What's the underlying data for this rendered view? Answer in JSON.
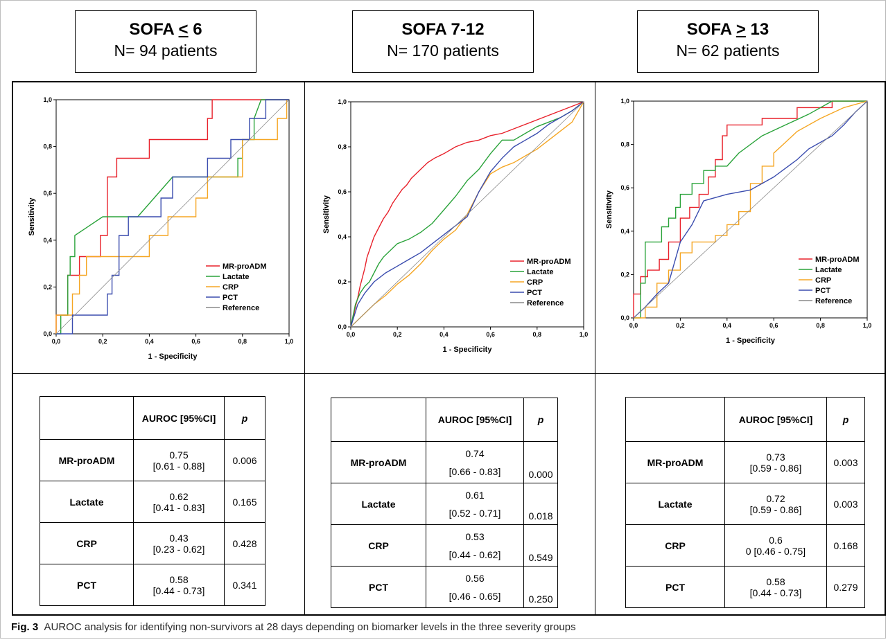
{
  "headers": [
    {
      "title_pre": "SOFA ",
      "title_sym": "<",
      "title_post": " 6",
      "subtitle": "N= 94 patients"
    },
    {
      "title_pre": "SOFA 7-12",
      "title_sym": "",
      "title_post": "",
      "subtitle": "N= 170 patients"
    },
    {
      "title_pre": "SOFA ",
      "title_sym": ">",
      "title_post": " 13",
      "subtitle": "N= 62 patients"
    }
  ],
  "colors": {
    "MR-proADM": "#e8202a",
    "Lactate": "#2aa33a",
    "CRP": "#f5a623",
    "PCT": "#3a4cae",
    "Reference": "#8a8a8a"
  },
  "chart_data": [
    {
      "type": "line",
      "xlabel": "1 - Specificity",
      "ylabel": "Sensitivity",
      "xlim": [
        0,
        1
      ],
      "ylim": [
        0,
        1
      ],
      "ticks": [
        "0,0",
        "0,2",
        "0,4",
        "0,6",
        "0,8",
        "1,0"
      ],
      "legend": [
        "MR-proADM",
        "Lactate",
        "CRP",
        "PCT",
        "Reference"
      ],
      "series": [
        {
          "name": "MR-proADM",
          "x": [
            0,
            0,
            0.05,
            0.05,
            0.1,
            0.1,
            0.19,
            0.19,
            0.22,
            0.22,
            0.26,
            0.26,
            0.3,
            0.3,
            0.4,
            0.4,
            0.65,
            0.65,
            0.67,
            0.67,
            1
          ],
          "y": [
            0,
            0.08,
            0.08,
            0.25,
            0.25,
            0.33,
            0.33,
            0.42,
            0.42,
            0.67,
            0.67,
            0.75,
            0.75,
            0.75,
            0.75,
            0.83,
            0.83,
            0.92,
            0.92,
            1,
            1
          ]
        },
        {
          "name": "Lactate",
          "x": [
            0,
            0.02,
            0.02,
            0.05,
            0.05,
            0.06,
            0.06,
            0.08,
            0.08,
            0.2,
            0.2,
            0.35,
            0.5,
            0.78,
            0.78,
            0.8,
            0.8,
            0.85,
            0.85,
            0.88,
            0.9,
            1
          ],
          "y": [
            0,
            0,
            0.08,
            0.08,
            0.25,
            0.25,
            0.33,
            0.33,
            0.42,
            0.5,
            0.5,
            0.5,
            0.67,
            0.67,
            0.75,
            0.75,
            0.83,
            0.83,
            0.92,
            1,
            1,
            1
          ]
        },
        {
          "name": "CRP",
          "x": [
            0,
            0,
            0.07,
            0.07,
            0.1,
            0.1,
            0.13,
            0.13,
            0.27,
            0.27,
            0.4,
            0.4,
            0.48,
            0.48,
            0.6,
            0.6,
            0.65,
            0.65,
            0.8,
            0.8,
            0.88,
            0.88,
            0.95,
            0.95,
            0.99,
            0.99
          ],
          "y": [
            0,
            0.08,
            0.08,
            0.17,
            0.17,
            0.25,
            0.25,
            0.33,
            0.33,
            0.33,
            0.33,
            0.42,
            0.42,
            0.5,
            0.5,
            0.58,
            0.58,
            0.67,
            0.67,
            0.83,
            0.83,
            0.83,
            0.83,
            0.92,
            0.92,
            1
          ]
        },
        {
          "name": "PCT",
          "x": [
            0,
            0.07,
            0.07,
            0.15,
            0.15,
            0.22,
            0.22,
            0.24,
            0.24,
            0.27,
            0.27,
            0.31,
            0.31,
            0.45,
            0.45,
            0.5,
            0.5,
            0.65,
            0.65,
            0.75,
            0.75,
            0.8,
            0.8,
            0.83,
            0.83,
            0.9,
            0.9,
            0.95,
            0.95,
            1
          ],
          "y": [
            0,
            0,
            0.08,
            0.08,
            0.08,
            0.08,
            0.17,
            0.17,
            0.25,
            0.25,
            0.42,
            0.42,
            0.5,
            0.5,
            0.58,
            0.58,
            0.67,
            0.67,
            0.75,
            0.75,
            0.83,
            0.83,
            0.83,
            0.83,
            0.92,
            0.92,
            1,
            1,
            1,
            1
          ]
        },
        {
          "name": "Reference",
          "x": [
            0,
            1
          ],
          "y": [
            0,
            1
          ]
        }
      ]
    },
    {
      "type": "line",
      "xlabel": "1 - Specificity",
      "ylabel": "Sensitivity",
      "xlim": [
        0,
        1
      ],
      "ylim": [
        0,
        1
      ],
      "ticks": [
        "0,0",
        "0,2",
        "0,4",
        "0,6",
        "0,8",
        "1,0"
      ],
      "legend": [
        "MR-proADM",
        "Lactate",
        "CRP",
        "PCT",
        "Reference"
      ],
      "series": [
        {
          "name": "MR-proADM",
          "x": [
            0,
            0.01,
            0.02,
            0.03,
            0.04,
            0.05,
            0.06,
            0.07,
            0.08,
            0.09,
            0.1,
            0.12,
            0.14,
            0.16,
            0.18,
            0.2,
            0.22,
            0.24,
            0.26,
            0.28,
            0.3,
            0.33,
            0.36,
            0.4,
            0.45,
            0.5,
            0.55,
            0.6,
            0.65,
            0.7,
            0.75,
            0.8,
            0.85,
            0.9,
            0.95,
            1
          ],
          "y": [
            0,
            0.04,
            0.09,
            0.13,
            0.18,
            0.22,
            0.26,
            0.31,
            0.34,
            0.37,
            0.4,
            0.44,
            0.48,
            0.51,
            0.55,
            0.58,
            0.61,
            0.63,
            0.66,
            0.68,
            0.7,
            0.73,
            0.75,
            0.77,
            0.8,
            0.82,
            0.83,
            0.85,
            0.86,
            0.88,
            0.9,
            0.92,
            0.94,
            0.96,
            0.98,
            1
          ]
        },
        {
          "name": "Lactate",
          "x": [
            0,
            0.02,
            0.04,
            0.06,
            0.08,
            0.1,
            0.12,
            0.14,
            0.16,
            0.2,
            0.25,
            0.3,
            0.35,
            0.4,
            0.45,
            0.5,
            0.55,
            0.6,
            0.65,
            0.7,
            0.75,
            0.8,
            0.85,
            0.9,
            0.95,
            1
          ],
          "y": [
            0,
            0.1,
            0.15,
            0.18,
            0.2,
            0.24,
            0.28,
            0.31,
            0.33,
            0.37,
            0.39,
            0.42,
            0.46,
            0.52,
            0.58,
            0.65,
            0.7,
            0.77,
            0.83,
            0.83,
            0.86,
            0.89,
            0.91,
            0.93,
            0.96,
            1
          ]
        },
        {
          "name": "CRP",
          "x": [
            0,
            0.05,
            0.1,
            0.15,
            0.2,
            0.25,
            0.3,
            0.35,
            0.4,
            0.45,
            0.5,
            0.55,
            0.6,
            0.65,
            0.7,
            0.75,
            0.8,
            0.85,
            0.9,
            0.95,
            1
          ],
          "y": [
            0,
            0.05,
            0.1,
            0.14,
            0.19,
            0.23,
            0.28,
            0.34,
            0.39,
            0.43,
            0.5,
            0.6,
            0.68,
            0.71,
            0.73,
            0.76,
            0.79,
            0.83,
            0.87,
            0.91,
            1
          ]
        },
        {
          "name": "PCT",
          "x": [
            0,
            0.03,
            0.06,
            0.1,
            0.15,
            0.2,
            0.25,
            0.3,
            0.35,
            0.4,
            0.45,
            0.5,
            0.55,
            0.6,
            0.65,
            0.7,
            0.75,
            0.8,
            0.85,
            0.9,
            0.95,
            1
          ],
          "y": [
            0,
            0.1,
            0.15,
            0.2,
            0.24,
            0.27,
            0.3,
            0.33,
            0.37,
            0.41,
            0.45,
            0.49,
            0.6,
            0.69,
            0.75,
            0.8,
            0.83,
            0.86,
            0.9,
            0.93,
            0.96,
            1
          ]
        },
        {
          "name": "Reference",
          "x": [
            0,
            1
          ],
          "y": [
            0,
            1
          ]
        }
      ]
    },
    {
      "type": "line",
      "xlabel": "1 - Specificity",
      "ylabel": "Sensitivity",
      "xlim": [
        0,
        1
      ],
      "ylim": [
        0,
        1
      ],
      "ticks": [
        "0,0",
        "0,2",
        "0,4",
        "0,6",
        "0,8",
        "1,0"
      ],
      "legend": [
        "MR-proADM",
        "Lactate",
        "CRP",
        "PCT",
        "Reference"
      ],
      "series": [
        {
          "name": "MR-proADM",
          "x": [
            0,
            0,
            0.03,
            0.03,
            0.06,
            0.06,
            0.11,
            0.11,
            0.15,
            0.15,
            0.2,
            0.2,
            0.24,
            0.24,
            0.28,
            0.28,
            0.32,
            0.32,
            0.35,
            0.35,
            0.38,
            0.38,
            0.4,
            0.4,
            0.47,
            0.47,
            0.55,
            0.55,
            0.7,
            0.7,
            0.85,
            0.85,
            1
          ],
          "y": [
            0,
            0.11,
            0.11,
            0.19,
            0.19,
            0.22,
            0.22,
            0.27,
            0.27,
            0.35,
            0.35,
            0.46,
            0.46,
            0.51,
            0.51,
            0.57,
            0.57,
            0.65,
            0.65,
            0.73,
            0.73,
            0.84,
            0.84,
            0.89,
            0.89,
            0.89,
            0.89,
            0.92,
            0.92,
            0.97,
            0.97,
            1,
            1
          ]
        },
        {
          "name": "Lactate",
          "x": [
            0,
            0.03,
            0.03,
            0.05,
            0.05,
            0.12,
            0.12,
            0.15,
            0.15,
            0.18,
            0.18,
            0.2,
            0.2,
            0.25,
            0.25,
            0.3,
            0.3,
            0.35,
            0.35,
            0.4,
            0.4,
            0.45,
            0.55,
            0.65,
            0.75,
            0.85,
            1
          ],
          "y": [
            0,
            0,
            0.16,
            0.16,
            0.35,
            0.35,
            0.42,
            0.42,
            0.46,
            0.46,
            0.51,
            0.51,
            0.57,
            0.57,
            0.62,
            0.62,
            0.68,
            0.68,
            0.7,
            0.7,
            0.7,
            0.76,
            0.84,
            0.89,
            0.94,
            1,
            1
          ]
        },
        {
          "name": "CRP",
          "x": [
            0,
            0.05,
            0.05,
            0.1,
            0.1,
            0.15,
            0.15,
            0.2,
            0.2,
            0.25,
            0.25,
            0.3,
            0.3,
            0.35,
            0.35,
            0.4,
            0.4,
            0.45,
            0.45,
            0.5,
            0.5,
            0.55,
            0.55,
            0.6,
            0.6,
            0.65,
            0.7,
            0.8,
            0.9,
            1
          ],
          "y": [
            0,
            0,
            0.05,
            0.05,
            0.16,
            0.16,
            0.22,
            0.22,
            0.3,
            0.3,
            0.35,
            0.35,
            0.35,
            0.35,
            0.38,
            0.38,
            0.43,
            0.43,
            0.49,
            0.49,
            0.62,
            0.62,
            0.7,
            0.7,
            0.76,
            0.81,
            0.86,
            0.92,
            0.97,
            1
          ]
        },
        {
          "name": "PCT",
          "x": [
            0,
            0.05,
            0.05,
            0.1,
            0.1,
            0.15,
            0.15,
            0.2,
            0.2,
            0.25,
            0.25,
            0.3,
            0.3,
            0.4,
            0.4,
            0.5,
            0.5,
            0.6,
            0.6,
            0.7,
            0.7,
            0.75,
            0.75,
            0.8,
            0.8,
            0.85,
            0.85,
            0.9,
            0.9,
            0.95,
            0.95,
            1
          ],
          "y": [
            0,
            0.05,
            0.05,
            0.11,
            0.11,
            0.16,
            0.16,
            0.35,
            0.35,
            0.43,
            0.43,
            0.54,
            0.54,
            0.57,
            0.57,
            0.59,
            0.59,
            0.65,
            0.65,
            0.73,
            0.73,
            0.78,
            0.78,
            0.81,
            0.81,
            0.84,
            0.84,
            0.89,
            0.89,
            0.95,
            0.95,
            1
          ]
        },
        {
          "name": "Reference",
          "x": [
            0,
            1
          ],
          "y": [
            0,
            1
          ]
        }
      ]
    }
  ],
  "tables": [
    {
      "col_auroc": "AUROC [95%CI]",
      "col_p": "p",
      "rows": [
        {
          "label": "MR-proADM",
          "auroc": "0.75",
          "ci": "[0.61 - 0.88]",
          "p": "0.006"
        },
        {
          "label": "Lactate",
          "auroc": "0.62",
          "ci": "[0.41 - 0.83]",
          "p": "0.165"
        },
        {
          "label": "CRP",
          "auroc": "0.43",
          "ci": "[0.23 - 0.62]",
          "p": "0.428"
        },
        {
          "label": "PCT",
          "auroc": "0.58",
          "ci": "[0.44 - 0.73]",
          "p": "0.341"
        }
      ]
    },
    {
      "col_auroc": "AUROC [95%CI]",
      "col_p": "p",
      "rows": [
        {
          "label": "MR-proADM",
          "auroc": "0.74",
          "ci": "[0.66 - 0.83]",
          "p": "0.000"
        },
        {
          "label": "Lactate",
          "auroc": "0.61",
          "ci": "[0.52 - 0.71]",
          "p": "0.018"
        },
        {
          "label": "CRP",
          "auroc": "0.53",
          "ci": "[0.44 - 0.62]",
          "p": "0.549"
        },
        {
          "label": "PCT",
          "auroc": "0.56",
          "ci": "[0.46 - 0.65]",
          "p": "0.250"
        }
      ]
    },
    {
      "col_auroc": "AUROC [95%CI]",
      "col_p": "p",
      "rows": [
        {
          "label": "MR-proADM",
          "auroc": "0.73",
          "ci": "[0.59 - 0.86]",
          "p": "0.003"
        },
        {
          "label": "Lactate",
          "auroc": "0.72",
          "ci": "[0.59 - 0.86]",
          "p": "0.003"
        },
        {
          "label": "CRP",
          "auroc": "0.6",
          "ci": "0 [0.46 - 0.75]",
          "p": "0.168"
        },
        {
          "label": "PCT",
          "auroc": "0.58",
          "ci": "[0.44 - 0.73]",
          "p": "0.279"
        }
      ]
    }
  ],
  "caption": {
    "label": "Fig. 3",
    "text": "AUROC analysis for identifying non-survivors at 28 days depending on biomarker levels in the three severity groups"
  }
}
